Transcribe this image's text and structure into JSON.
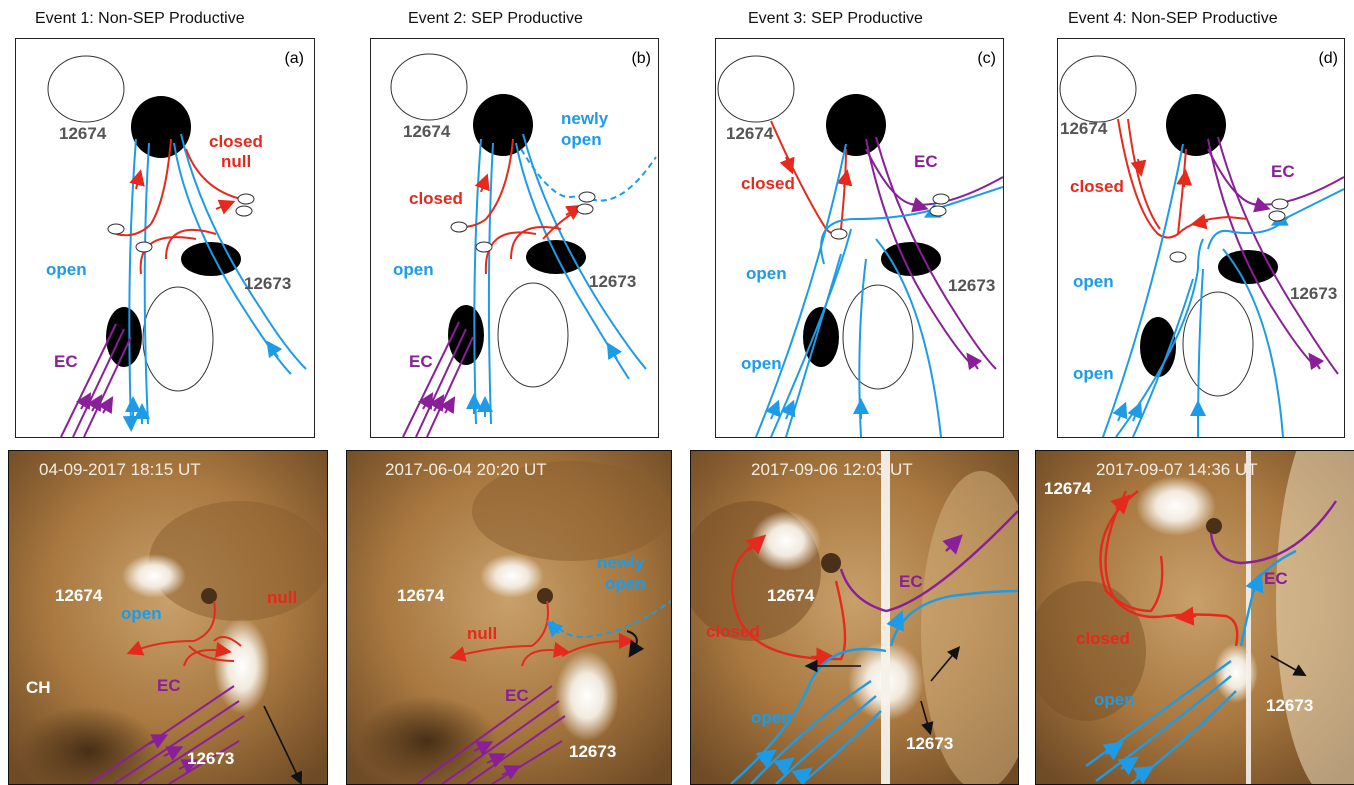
{
  "events": [
    {
      "title": "Event 1: Non-SEP Productive",
      "tag": "(a)",
      "timestamp": "04-09-2017 18:15 UT",
      "diagram": {
        "ar_north": "12674",
        "ar_south": "12673",
        "labels": [
          "closed",
          "null",
          "open",
          "EC"
        ]
      },
      "photo": {
        "labels": [
          "12674",
          "open",
          "null",
          "CH",
          "EC",
          "12673"
        ]
      }
    },
    {
      "title": "Event 2: SEP Productive",
      "tag": "(b)",
      "timestamp": "2017-06-04 20:20 UT",
      "diagram": {
        "ar_north": "12674",
        "ar_south": "12673",
        "labels": [
          "newly",
          "open",
          "closed",
          "open",
          "EC"
        ]
      },
      "photo": {
        "labels": [
          "newly",
          "open",
          "12674",
          "null",
          "EC",
          "12673"
        ]
      }
    },
    {
      "title": "Event 3: SEP Productive",
      "tag": "(c)",
      "timestamp": "2017-09-06 12:03 UT",
      "diagram": {
        "ar_north": "12674",
        "ar_south": "12673",
        "labels": [
          "closed",
          "EC",
          "open",
          "open"
        ]
      },
      "photo": {
        "labels": [
          "12674",
          "EC",
          "closed",
          "open",
          "12673"
        ]
      }
    },
    {
      "title": "Event 4: Non-SEP Productive",
      "tag": "(d)",
      "timestamp": "2017-09-07 14:36 UT",
      "diagram": {
        "ar_north": "12674",
        "ar_south": "12673",
        "labels": [
          "closed",
          "EC",
          "open",
          "open"
        ]
      },
      "photo": {
        "labels": [
          "12674",
          "EC",
          "closed",
          "open",
          "12673"
        ]
      }
    }
  ],
  "colors": {
    "open": "#1e9be6",
    "closed": "#e52a1d",
    "ec": "#8a1f99",
    "sun": "#a8783c"
  }
}
